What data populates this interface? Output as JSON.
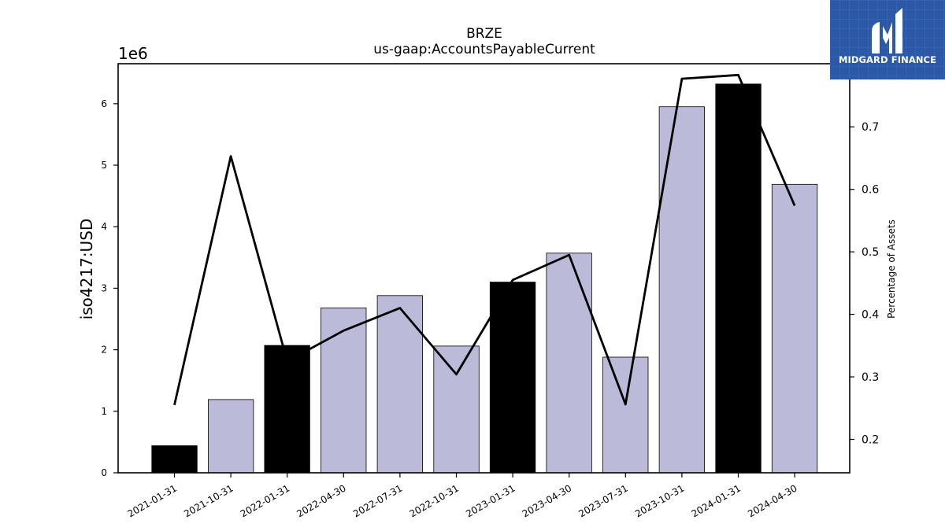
{
  "chart_data": {
    "type": "bar",
    "title": "BRZE",
    "subtitle": "us-gaap:AccountsPayableCurrent",
    "ylabel": "iso4217:USD",
    "y_offset_label": "1e6",
    "y2label": "Percentage of Assets",
    "categories": [
      "2021-01-31",
      "2021-10-31",
      "2022-01-31",
      "2022-04-30",
      "2022-07-31",
      "2022-10-31",
      "2023-01-31",
      "2023-04-30",
      "2023-07-31",
      "2023-10-31",
      "2024-01-31",
      "2024-04-30"
    ],
    "values": [
      440000,
      1190000,
      2070000,
      2680000,
      2880000,
      2060000,
      3100000,
      3570000,
      1880000,
      5950000,
      6320000,
      4690000
    ],
    "bar_highlight": [
      true,
      false,
      true,
      false,
      false,
      false,
      true,
      false,
      false,
      false,
      true,
      false
    ],
    "bar_colors": {
      "highlight": "#000000",
      "normal": "#bcbad9"
    },
    "ylim": [
      0,
      6650000
    ],
    "yticks": [
      0,
      1,
      2,
      3,
      4,
      5,
      6
    ],
    "line_series": {
      "values": [
        0.255,
        0.653,
        0.325,
        0.374,
        0.41,
        0.304,
        0.455,
        0.495,
        0.256,
        0.777,
        0.783,
        0.574
      ],
      "color": "#000000"
    },
    "y2lim": [
      0.1465,
      0.801
    ],
    "y2ticks": [
      0.2,
      0.3,
      0.4,
      0.5,
      0.6,
      0.7
    ]
  },
  "logo": {
    "text": "MIDGARD FINANCE"
  }
}
